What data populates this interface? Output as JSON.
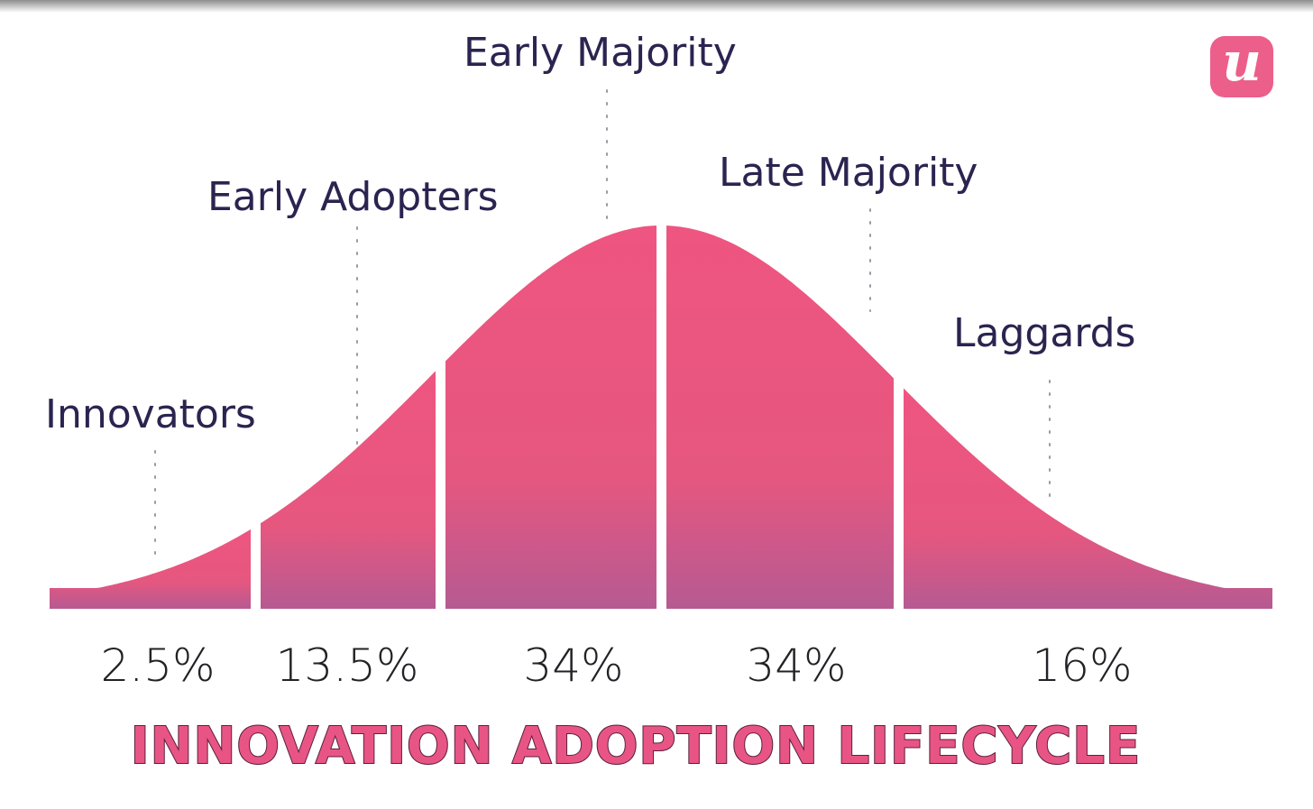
{
  "title": "INNOVATION ADOPTION LIFECYCLE",
  "logo": {
    "mark": "u",
    "icon": "userpilot-logo-icon",
    "color": "#ec5f8a"
  },
  "colors": {
    "curve_top": "#ee5580",
    "curve_bottom": "#b65a92",
    "label_text": "#2b2450",
    "title_text": "#e85584"
  },
  "segments": [
    {
      "name": "Innovators",
      "percent": "2.5%",
      "share": 2.5
    },
    {
      "name": "Early Adopters",
      "percent": "13.5%",
      "share": 13.5
    },
    {
      "name": "Early Majority",
      "percent": "34%",
      "share": 34
    },
    {
      "name": "Late Majority",
      "percent": "34%",
      "share": 34
    },
    {
      "name": "Laggards",
      "percent": "16%",
      "share": 16
    }
  ]
}
